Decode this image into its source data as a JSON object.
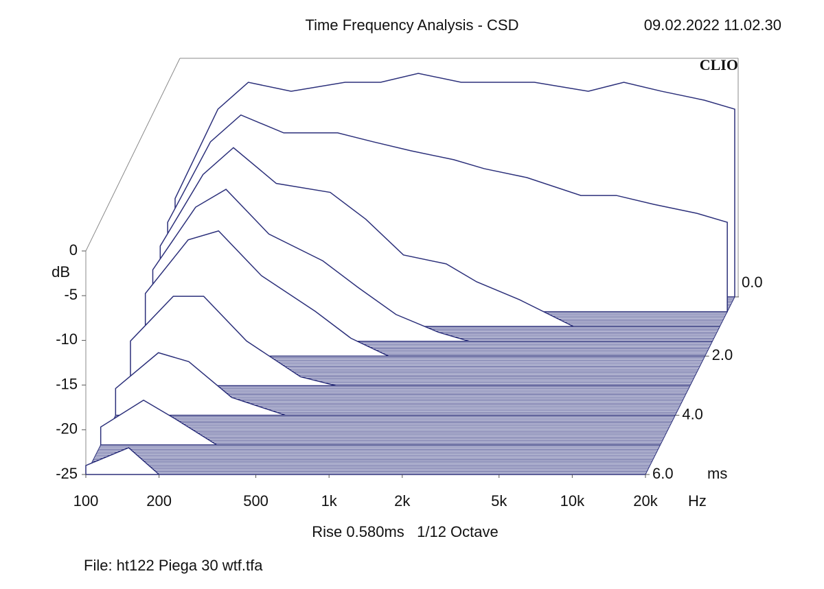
{
  "chart_data": {
    "type": "waterfall",
    "title": "Time Frequency Analysis - CSD",
    "timestamp": "09.02.2022 11.02.30",
    "brand": "CLIO",
    "settings": "Rise 0.580ms   1/12 Octave",
    "file": "File: ht122 Piega 30 wtf.tfa",
    "x_unit": "Hz",
    "y_unit": "dB",
    "z_unit": "ms",
    "xscale": "log",
    "xlim": [
      100,
      20000
    ],
    "ylim": [
      -25,
      0
    ],
    "zlim": [
      0,
      6
    ],
    "xticks": [
      100,
      200,
      500,
      {
        "value": 1000,
        "label": "1k"
      },
      {
        "value": 2000,
        "label": "2k"
      },
      {
        "value": 5000,
        "label": "5k"
      },
      {
        "value": 10000,
        "label": "10k"
      },
      {
        "value": 20000,
        "label": "20k"
      }
    ],
    "yticks": [
      0,
      -5,
      -10,
      -15,
      -20,
      -25
    ],
    "zticks": [
      {
        "value": 0,
        "label": "0.0"
      },
      {
        "value": 2,
        "label": "2.0"
      },
      {
        "value": 4,
        "label": "4.0"
      },
      {
        "value": 6,
        "label": "6.0"
      }
    ],
    "color": "#2b2f7a",
    "x": [
      100,
      150,
      200,
      300,
      500,
      700,
      1000,
      1500,
      2000,
      3000,
      5000,
      7000,
      10000,
      15000,
      20000
    ],
    "slices": [
      {
        "time": 0,
        "values": [
          -14,
          -4,
          -1,
          -2,
          -1,
          -1,
          0,
          -1,
          -1,
          -1,
          -2,
          -1,
          -2,
          -3,
          -4
        ]
      },
      {
        "time": 0.5,
        "values": [
          -15,
          -6,
          -3,
          -5,
          -5,
          -6,
          -7,
          -8,
          -9,
          -10,
          -12,
          -12,
          -13,
          -14,
          -15
        ]
      },
      {
        "time": 1,
        "values": [
          -16,
          -8,
          -5,
          -9,
          -10,
          -13,
          -17,
          -18,
          -20,
          -22,
          -25,
          -25,
          -25,
          -25,
          -25
        ]
      },
      {
        "time": 1.5,
        "values": [
          -17,
          -10,
          -8,
          -13,
          -16,
          -19,
          -22,
          -24,
          -25,
          -25,
          -25,
          -25,
          -25,
          -25,
          -25
        ]
      },
      {
        "time": 2,
        "values": [
          -18,
          -12,
          -11,
          -16,
          -20,
          -23,
          -25,
          -25,
          -25,
          -25,
          -25,
          -25,
          -25,
          -25,
          -25
        ]
      },
      {
        "time": 3,
        "values": [
          -20,
          -15,
          -15,
          -20,
          -24,
          -25,
          -25,
          -25,
          -25,
          -25,
          -25,
          -25,
          -25,
          -25,
          -25
        ]
      },
      {
        "time": 4,
        "values": [
          -22,
          -18,
          -19,
          -23,
          -25,
          -25,
          -25,
          -25,
          -25,
          -25,
          -25,
          -25,
          -25,
          -25,
          -25
        ]
      },
      {
        "time": 5,
        "values": [
          -23,
          -20,
          -22,
          -25,
          -25,
          -25,
          -25,
          -25,
          -25,
          -25,
          -25,
          -25,
          -25,
          -25,
          -25
        ]
      },
      {
        "time": 6,
        "values": [
          -24,
          -22,
          -25,
          -25,
          -25,
          -25,
          -25,
          -25,
          -25,
          -25,
          -25,
          -25,
          -25,
          -25,
          -25
        ]
      }
    ]
  }
}
